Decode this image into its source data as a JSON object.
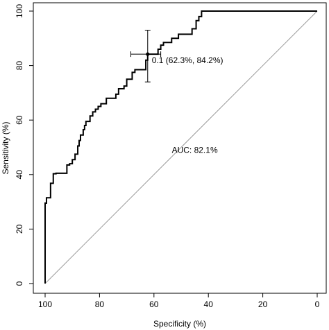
{
  "chart_data": {
    "type": "line",
    "title": "",
    "xlabel": "Specificity (%)",
    "ylabel": "Sensitivity (%)",
    "x_reversed": true,
    "xlim": [
      100,
      0
    ],
    "ylim": [
      0,
      100
    ],
    "xticks": [
      100,
      80,
      60,
      40,
      20,
      0
    ],
    "yticks": [
      0,
      20,
      40,
      60,
      80,
      100
    ],
    "xtick_labels": [
      "100",
      "80",
      "60",
      "40",
      "20",
      "0"
    ],
    "ytick_labels": [
      "0",
      "20",
      "40",
      "60",
      "80",
      "100"
    ],
    "grid": false,
    "legend": "none",
    "series": [
      {
        "specificity": [
          100,
          100,
          99.5,
          99.5,
          98,
          98,
          97,
          97,
          96,
          96,
          92,
          92,
          91,
          91,
          90,
          90,
          89,
          89,
          88,
          88,
          87.5,
          87.5,
          87,
          87,
          86,
          86,
          85.5,
          85.5,
          85,
          85,
          83.5,
          83.5,
          82.5,
          82.5,
          81.5,
          81.5,
          80.5,
          80.5,
          79.5,
          79.5,
          77.5,
          77.5,
          74,
          74,
          73,
          73,
          71,
          71,
          70,
          70,
          68,
          68,
          67,
          67,
          63,
          63,
          62.3,
          62.3,
          58.5,
          58.5,
          57.5,
          57.5,
          56.5,
          56.5,
          53.5,
          53.5,
          51,
          51,
          46,
          46,
          44.5,
          44.5,
          43.5,
          43.5,
          42.5,
          42.5,
          0
        ],
        "sensitivity": [
          0,
          29.5,
          29.5,
          31.5,
          31.5,
          36.8,
          36.8,
          40.3,
          40.3,
          40.5,
          40.5,
          43.5,
          43.5,
          44,
          44,
          45.5,
          45.5,
          47.5,
          47.5,
          50.5,
          50.5,
          52.5,
          52.5,
          54.5,
          54.5,
          56.5,
          56.5,
          58,
          58,
          59.5,
          59.5,
          61.5,
          61.5,
          63,
          63,
          64,
          64,
          65,
          65,
          66,
          66,
          68,
          68,
          69.5,
          69.5,
          71.5,
          71.5,
          72.5,
          72.5,
          75,
          75,
          77.5,
          77.5,
          78.5,
          78.5,
          82,
          82,
          84.2,
          84.2,
          86,
          86,
          87.5,
          87.5,
          88.5,
          88.5,
          90,
          90,
          91.5,
          91.5,
          93.5,
          93.5,
          96.5,
          96.5,
          98,
          98,
          100,
          100
        ]
      }
    ],
    "reference_line": {
      "from": [
        100,
        0
      ],
      "to": [
        0,
        100
      ]
    },
    "threshold_point": {
      "specificity": 62.3,
      "sensitivity": 84.2,
      "label": "0.1 (62.3%, 84.2%)",
      "ci_specificity": [
        68.5,
        57.5
      ],
      "ci_sensitivity": [
        74,
        93
      ]
    },
    "auc_label": "AUC: 82.1%",
    "auc_label_position": {
      "specificity": 45,
      "sensitivity": 49
    }
  }
}
